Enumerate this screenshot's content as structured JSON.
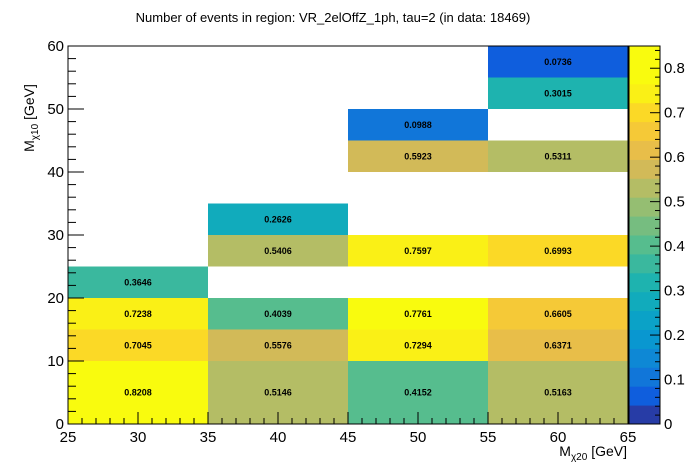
{
  "chart_data": {
    "type": "heatmap",
    "title": "Number of events in region: VR_2elOffZ_1ph, tau=2 (in data: 18469)",
    "xlabel": {
      "main": "M",
      "sub": "χ20",
      "unit": " [GeV]"
    },
    "ylabel": {
      "main": "M",
      "sub": "χ10",
      "unit": " [GeV]"
    },
    "xlim": [
      25,
      65
    ],
    "ylim": [
      0,
      60
    ],
    "x_ticks": [
      "25",
      "30",
      "35",
      "40",
      "45",
      "50",
      "55",
      "60",
      "65"
    ],
    "y_ticks": [
      "0",
      "10",
      "20",
      "30",
      "40",
      "50",
      "60"
    ],
    "z_range": [
      0,
      0.85
    ],
    "z_ticks": [
      "0",
      "0.1",
      "0.2",
      "0.3",
      "0.4",
      "0.5",
      "0.6",
      "0.7",
      "0.8"
    ],
    "x_bin_edges": [
      25,
      35,
      45,
      55,
      65
    ],
    "y_bin_edges": [
      0,
      10,
      15,
      20,
      25,
      30,
      35,
      40,
      45,
      50,
      55,
      60
    ],
    "cells": [
      {
        "xbin": 0,
        "ybin": 0,
        "value": 0.8208,
        "label": "0.8208"
      },
      {
        "xbin": 1,
        "ybin": 0,
        "value": 0.5146,
        "label": "0.5146"
      },
      {
        "xbin": 2,
        "ybin": 0,
        "value": 0.4152,
        "label": "0.4152"
      },
      {
        "xbin": 3,
        "ybin": 0,
        "value": 0.5163,
        "label": "0.5163"
      },
      {
        "xbin": 0,
        "ybin": 1,
        "value": 0.7045,
        "label": "0.7045"
      },
      {
        "xbin": 1,
        "ybin": 1,
        "value": 0.5576,
        "label": "0.5576"
      },
      {
        "xbin": 2,
        "ybin": 1,
        "value": 0.7294,
        "label": "0.7294"
      },
      {
        "xbin": 3,
        "ybin": 1,
        "value": 0.6371,
        "label": "0.6371"
      },
      {
        "xbin": 0,
        "ybin": 2,
        "value": 0.7238,
        "label": "0.7238"
      },
      {
        "xbin": 1,
        "ybin": 2,
        "value": 0.4039,
        "label": "0.4039"
      },
      {
        "xbin": 2,
        "ybin": 2,
        "value": 0.7761,
        "label": "0.7761"
      },
      {
        "xbin": 3,
        "ybin": 2,
        "value": 0.6605,
        "label": "0.6605"
      },
      {
        "xbin": 0,
        "ybin": 3,
        "value": 0.3646,
        "label": "0.3646"
      },
      {
        "xbin": 1,
        "ybin": 4,
        "value": 0.5406,
        "label": "0.5406"
      },
      {
        "xbin": 2,
        "ybin": 4,
        "value": 0.7597,
        "label": "0.7597"
      },
      {
        "xbin": 3,
        "ybin": 4,
        "value": 0.6993,
        "label": "0.6993"
      },
      {
        "xbin": 1,
        "ybin": 5,
        "value": 0.2626,
        "label": "0.2626"
      },
      {
        "xbin": 2,
        "ybin": 7,
        "value": 0.5923,
        "label": "0.5923"
      },
      {
        "xbin": 3,
        "ybin": 7,
        "value": 0.5311,
        "label": "0.5311"
      },
      {
        "xbin": 2,
        "ybin": 8,
        "value": 0.0988,
        "label": "0.0988"
      },
      {
        "xbin": 3,
        "ybin": 9,
        "value": 0.3015,
        "label": "0.3015"
      },
      {
        "xbin": 3,
        "ybin": 10,
        "value": 0.0736,
        "label": "0.0736"
      }
    ],
    "grid": false,
    "legend": "right (color bar)",
    "colormap": "parula",
    "colors": {
      "frame": "#000000",
      "background": "#ffffff"
    }
  }
}
